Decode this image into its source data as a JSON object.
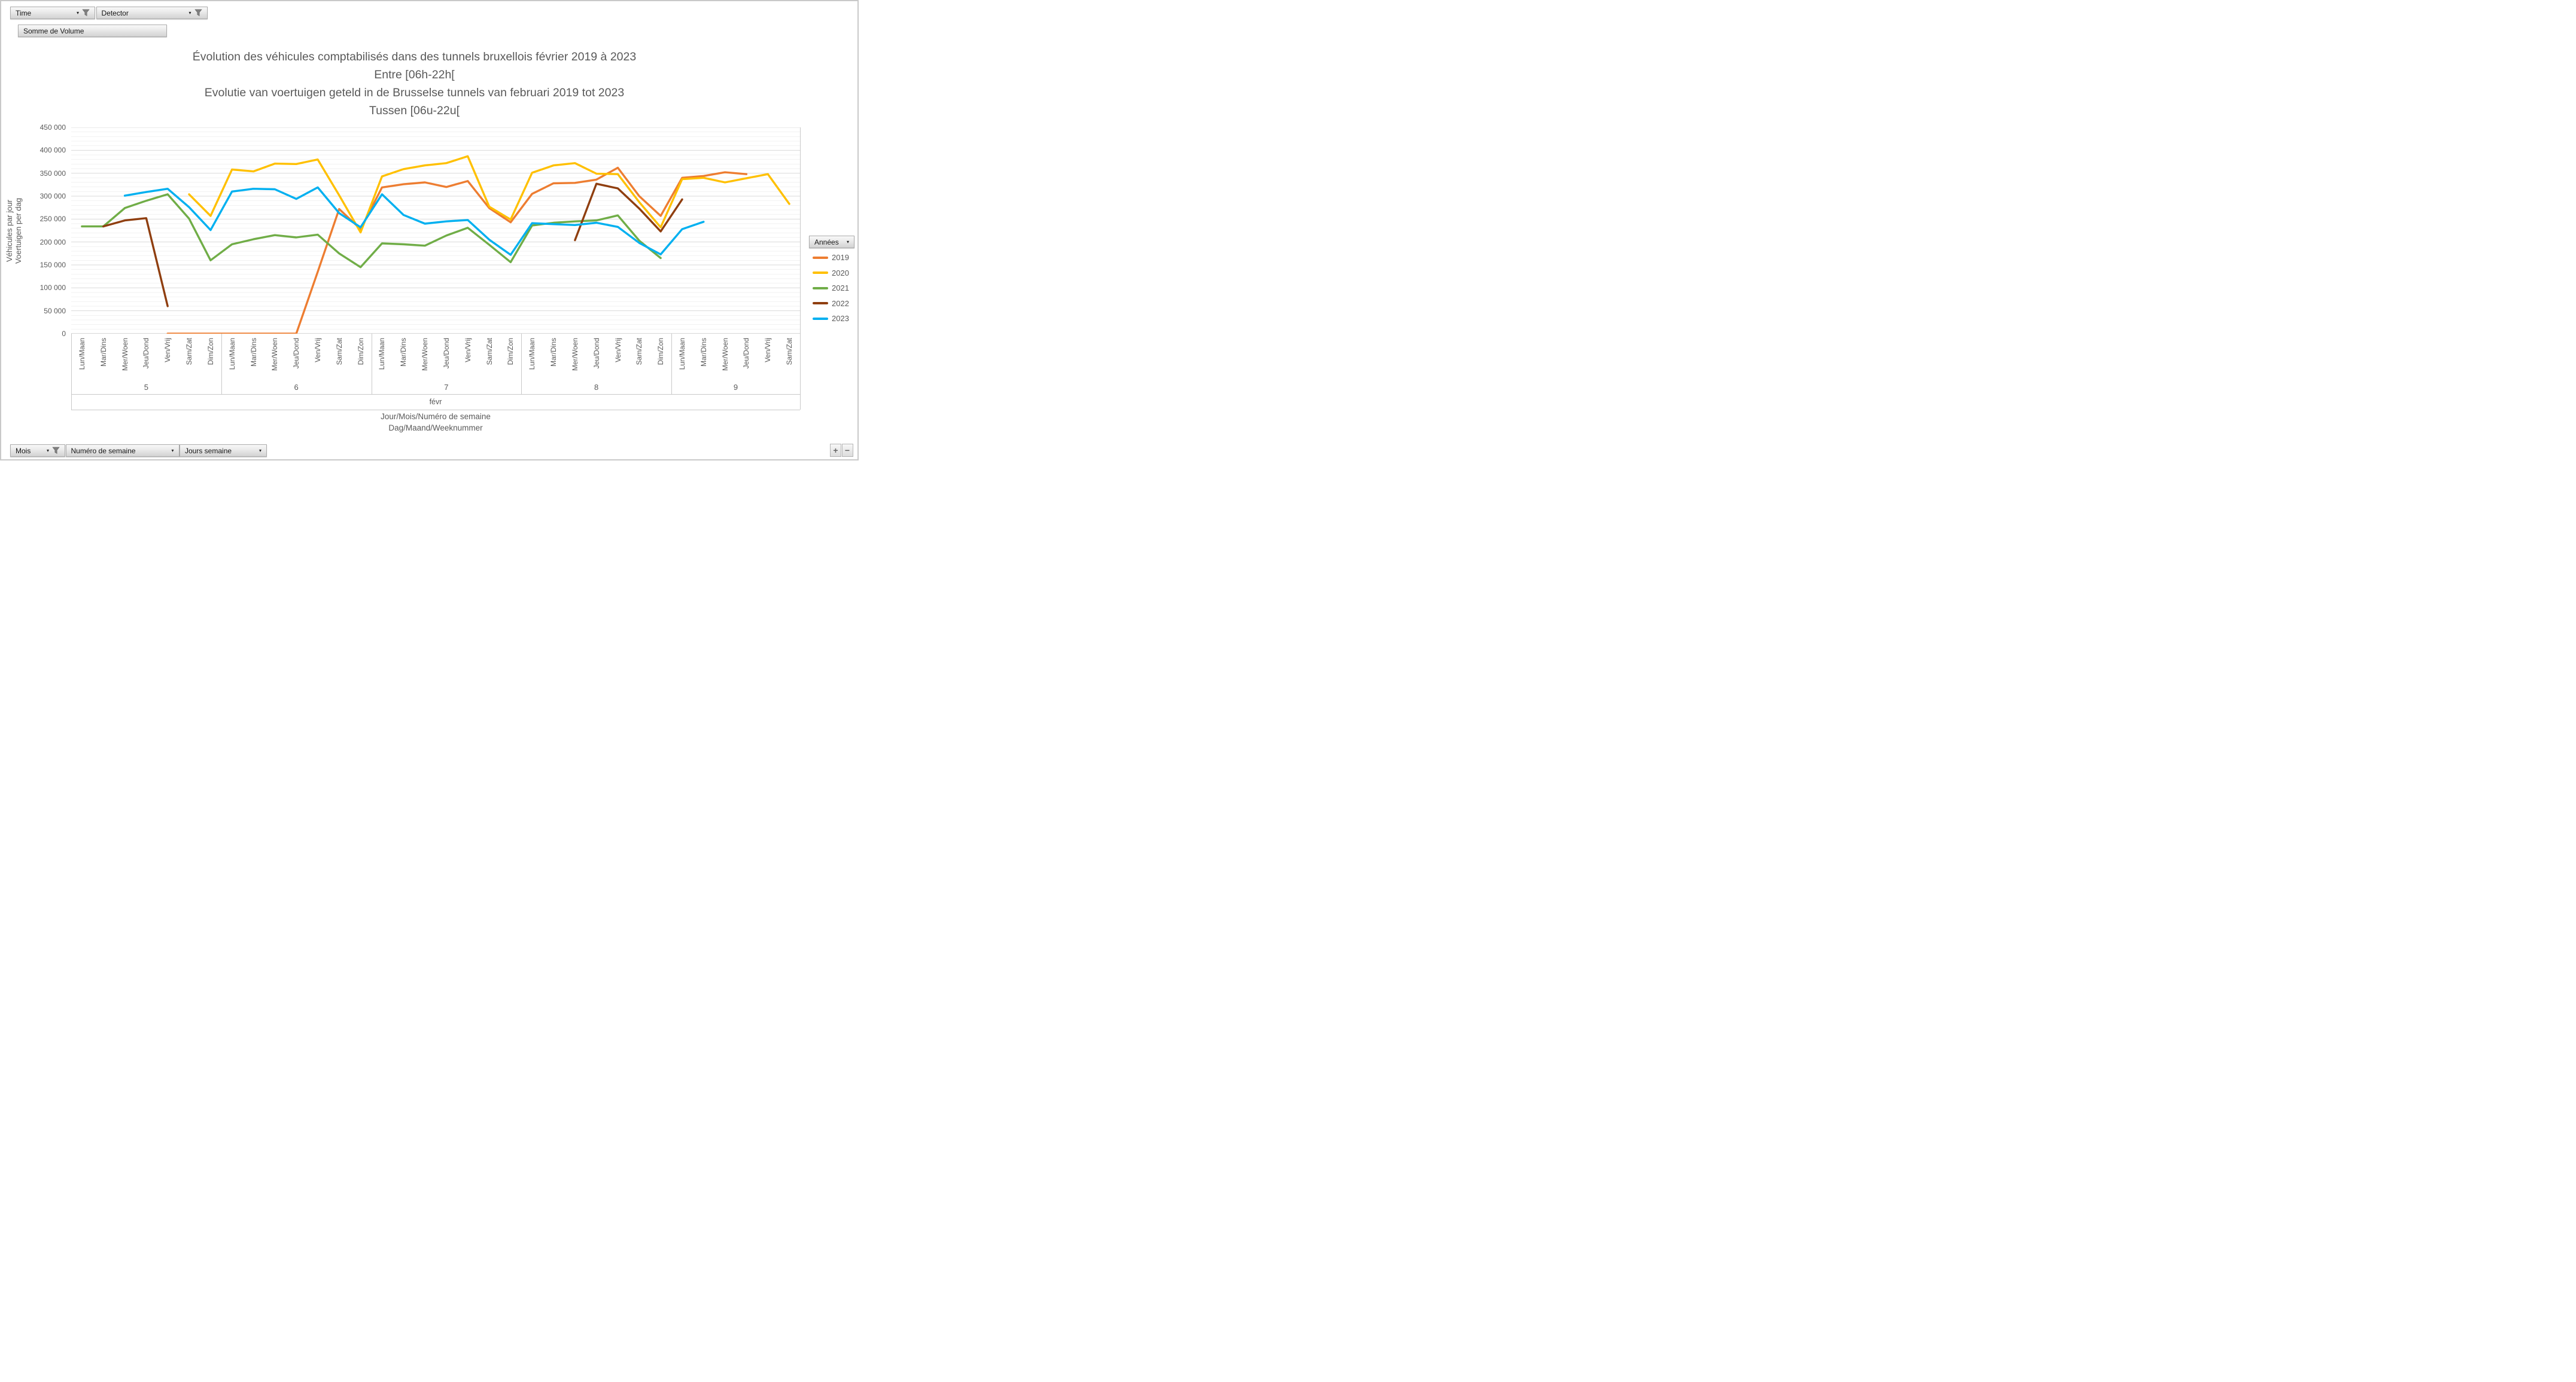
{
  "filters_top": [
    {
      "label": "Time",
      "icon": "filter-icon"
    },
    {
      "label": "Detector",
      "icon": "filter-icon"
    }
  ],
  "value_button_label": "Somme de Volume",
  "title_lines": [
    "Évolution des véhicules comptabilisés dans des tunnels bruxellois février 2019 à 2023",
    "Entre [06h-22h[",
    "Evolutie van voertuigen geteld in de Brusselse tunnels van februari 2019 tot 2023",
    "Tussen [06u-22u["
  ],
  "y_axis": {
    "title_lines": [
      "Véhicules par jour",
      "Voertuigen per dag"
    ],
    "tick_labels": [
      "0",
      "50 000",
      "100 000",
      "150 000",
      "200 000",
      "250 000",
      "300 000",
      "350 000",
      "400 000",
      "450 000"
    ]
  },
  "x_axis": {
    "month": "févr",
    "title_lines": [
      "Jour/Mois/Numéro de semaine",
      "Dag/Maand/Weeknummer"
    ]
  },
  "legend": {
    "header": "Années"
  },
  "filters_bottom": [
    {
      "label": "Mois",
      "icon": "filter-icon"
    },
    {
      "label": "Numéro de semaine",
      "icon": "dropdown"
    },
    {
      "label": "Jours semaine",
      "icon": "dropdown"
    }
  ],
  "zoom_buttons": {
    "plus": "+",
    "minus": "−"
  },
  "chart_data": {
    "type": "line",
    "title": "Évolution des véhicules comptabilisés dans des tunnels bruxellois février 2019 à 2023 Entre [06h-22h[",
    "ylabel": "Véhicules par jour / Voertuigen per dag",
    "ylim": [
      0,
      450000
    ],
    "y_major_step": 50000,
    "y_minor_step": 10000,
    "grid": "on",
    "legend_position": "right",
    "weeks": [
      {
        "label": "5",
        "days": 7
      },
      {
        "label": "6",
        "days": 7
      },
      {
        "label": "7",
        "days": 7
      },
      {
        "label": "8",
        "days": 7
      },
      {
        "label": "9",
        "days": 6
      }
    ],
    "categories": [
      "Lun/Maan",
      "Mar/Dins",
      "Mer/Woen",
      "Jeu/Dond",
      "Ven/Vrij",
      "Sam/Zat",
      "Dim/Zon",
      "Lun/Maan",
      "Mar/Dins",
      "Mer/Woen",
      "Jeu/Dond",
      "Ven/Vrij",
      "Sam/Zat",
      "Dim/Zon",
      "Lun/Maan",
      "Mar/Dins",
      "Mer/Woen",
      "Jeu/Dond",
      "Ven/Vrij",
      "Sam/Zat",
      "Dim/Zon",
      "Lun/Maan",
      "Mar/Dins",
      "Mer/Woen",
      "Jeu/Dond",
      "Ven/Vrij",
      "Sam/Zat",
      "Dim/Zon",
      "Lun/Maan",
      "Mar/Dins",
      "Mer/Woen",
      "Jeu/Dond",
      "Ven/Vrij",
      "Sam/Zat"
    ],
    "series": [
      {
        "name": "2019",
        "color": "#ED7D31",
        "values": [
          null,
          null,
          null,
          null,
          0,
          0,
          0,
          0,
          0,
          0,
          0,
          135000,
          272000,
          228000,
          319000,
          326000,
          330000,
          320000,
          333000,
          274000,
          243000,
          305000,
          328000,
          329000,
          336000,
          362000,
          300000,
          257000,
          340000,
          344000,
          352000,
          348000,
          null,
          null
        ]
      },
      {
        "name": "2020",
        "color": "#FFC000",
        "values": [
          null,
          null,
          null,
          null,
          null,
          304000,
          257000,
          358000,
          354000,
          371000,
          370000,
          380000,
          302000,
          221000,
          343000,
          359000,
          367000,
          372000,
          387000,
          277000,
          249000,
          351000,
          367000,
          372000,
          349000,
          348000,
          287000,
          232000,
          337000,
          340000,
          330000,
          339000,
          348000,
          283000
        ]
      },
      {
        "name": "2021",
        "color": "#70AD47",
        "values": [
          234000,
          234000,
          274000,
          290000,
          304000,
          251000,
          160000,
          195000,
          206000,
          215000,
          210000,
          216000,
          175000,
          145000,
          197000,
          195000,
          192000,
          214000,
          231000,
          194000,
          156000,
          236000,
          242000,
          245000,
          247000,
          258000,
          203000,
          165000,
          null,
          null,
          null,
          null,
          null,
          null
        ]
      },
      {
        "name": "2022",
        "color": "#8F3E0F",
        "values": [
          null,
          234000,
          247000,
          252000,
          60000,
          null,
          null,
          null,
          null,
          null,
          null,
          null,
          null,
          null,
          null,
          null,
          null,
          null,
          null,
          null,
          null,
          null,
          null,
          204000,
          327000,
          317000,
          273000,
          223000,
          293000,
          null,
          null,
          null,
          null,
          null
        ]
      },
      {
        "name": "2023",
        "color": "#00B0F0",
        "values": [
          null,
          null,
          301000,
          309000,
          316000,
          276000,
          226000,
          310000,
          316000,
          315000,
          294000,
          319000,
          263000,
          232000,
          304000,
          259000,
          240000,
          245000,
          248000,
          205000,
          172000,
          241000,
          239000,
          237000,
          242000,
          233000,
          198000,
          173000,
          228000,
          244000,
          null,
          null,
          null,
          null
        ]
      }
    ]
  }
}
